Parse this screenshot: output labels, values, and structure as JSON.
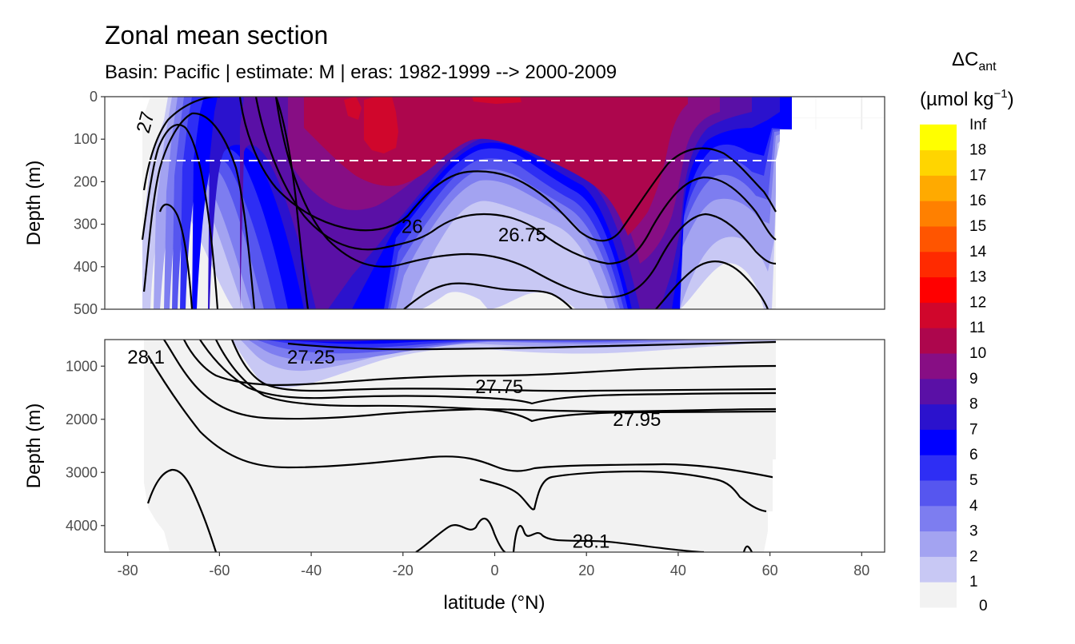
{
  "title": "Zonal mean section",
  "subtitle": "Basin: Pacific | estimate: M  | eras: 1982-1999 --> 2000-2009",
  "legend": {
    "title_main": "ΔC",
    "title_sub": "ant",
    "unit_pre": "(µmol kg",
    "unit_sup": "−1",
    "unit_post": ")",
    "breaks": [
      "0",
      "1",
      "2",
      "3",
      "4",
      "5",
      "6",
      "7",
      "8",
      "9",
      "10",
      "11",
      "12",
      "13",
      "14",
      "15",
      "16",
      "17",
      "18",
      "Inf"
    ],
    "colors": [
      "#f2f2f2",
      "#c8c8f4",
      "#a3a3f1",
      "#7d7df0",
      "#5656ef",
      "#2e2ef4",
      "#0000ff",
      "#2b12cd",
      "#5a10a6",
      "#870e84",
      "#ad064d",
      "#d0062c",
      "#ff0000",
      "#ff2a00",
      "#ff5500",
      "#ff8000",
      "#ffaa00",
      "#ffd500",
      "#ffff00"
    ]
  },
  "x_axis": {
    "label": "latitude (°N)",
    "ticks": [
      "-80",
      "-60",
      "-40",
      "-20",
      "0",
      "20",
      "40",
      "60",
      "80"
    ]
  },
  "panels": [
    {
      "ylabel": "Depth (m)",
      "yticks": [
        "0",
        "100",
        "200",
        "300",
        "400",
        "500"
      ]
    },
    {
      "ylabel": "Depth (m)",
      "yticks": [
        "1000",
        "2000",
        "3000",
        "4000"
      ]
    }
  ],
  "chart_data": {
    "type": "heatmap",
    "title": "Zonal mean section",
    "subtitle": "Basin: Pacific | estimate: M  | eras: 1982-1999 --> 2000-2009",
    "xlabel": "latitude (°N)",
    "ylabel": "Depth (m)",
    "xlim": [
      -85,
      85
    ],
    "ylim_upper_panel": [
      500,
      0
    ],
    "ylim_lower_panel": [
      4500,
      500
    ],
    "data_lat_range": [
      -77,
      65
    ],
    "reference_line_depth": 150,
    "variable": "ΔCant (µmol kg−1)",
    "contour_labels": [
      {
        "text": "26",
        "lat": -18,
        "depth": 305
      },
      {
        "text": "26.75",
        "lat": 6,
        "depth": 325
      },
      {
        "text": "28.1",
        "lat": -76,
        "depth": 830
      },
      {
        "text": "27.25",
        "lat": -40,
        "depth": 830
      },
      {
        "text": "27.75",
        "lat": 1,
        "depth": 1390
      },
      {
        "text": "27.95",
        "lat": 31,
        "depth": 2000
      },
      {
        "text": "28.1",
        "lat": 21,
        "depth": 4300
      }
    ],
    "surface_field": [
      {
        "lat": -76,
        "value": 3
      },
      {
        "lat": -70,
        "value": 4
      },
      {
        "lat": -60,
        "value": 6
      },
      {
        "lat": -50,
        "value": 7
      },
      {
        "lat": -40,
        "value": 9
      },
      {
        "lat": -30,
        "value": 10
      },
      {
        "lat": -20,
        "value": 11
      },
      {
        "lat": -10,
        "value": 10
      },
      {
        "lat": 0,
        "value": 9
      },
      {
        "lat": 10,
        "value": 9
      },
      {
        "lat": 20,
        "value": 10
      },
      {
        "lat": 30,
        "value": 11
      },
      {
        "lat": 40,
        "value": 10
      },
      {
        "lat": 50,
        "value": 7
      },
      {
        "lat": 60,
        "value": 6
      }
    ]
  }
}
